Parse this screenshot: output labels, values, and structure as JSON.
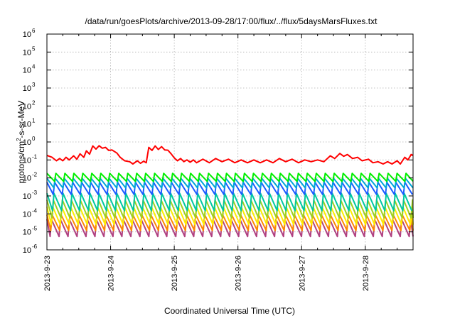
{
  "chart_data": {
    "type": "line",
    "title": "/data/run/goesPlots/archive/2013-09-28/17:00/flux/../flux/5daysMarsFluxes.txt",
    "xlabel": "Coordinated Universal Time (UTC)",
    "ylabel": "protons/cm²-s-sr-MeV",
    "ylabel_base": "protons/cm",
    "ylabel_sup": "2",
    "ylabel_rest": "-s-sr-MeV",
    "yscale": "log",
    "ylim": [
      1e-06,
      1000000.0
    ],
    "xlim_days": [
      0,
      5.75
    ],
    "grid": true,
    "yticks": [
      {
        "exp": "-6",
        "base": "10"
      },
      {
        "exp": "-5",
        "base": "10"
      },
      {
        "exp": "-4",
        "base": "10"
      },
      {
        "exp": "-3",
        "base": "10"
      },
      {
        "exp": "-2",
        "base": "10"
      },
      {
        "exp": "-1",
        "base": "10"
      },
      {
        "exp": "0",
        "base": "10"
      },
      {
        "exp": "1",
        "base": "10"
      },
      {
        "exp": "2",
        "base": "10"
      },
      {
        "exp": "3",
        "base": "10"
      },
      {
        "exp": "4",
        "base": "10"
      },
      {
        "exp": "5",
        "base": "10"
      },
      {
        "exp": "6",
        "base": "10"
      }
    ],
    "xticks": [
      "2013-9-23",
      "2013-9-24",
      "2013-9-25",
      "2013-9-26",
      "2013-9-27",
      "2013-9-28"
    ],
    "series": [
      {
        "color": "#ff0000",
        "points": [
          [
            0.0,
            0.18
          ],
          [
            0.08,
            0.14
          ],
          [
            0.15,
            0.09
          ],
          [
            0.2,
            0.12
          ],
          [
            0.25,
            0.09
          ],
          [
            0.3,
            0.14
          ],
          [
            0.35,
            0.1
          ],
          [
            0.42,
            0.17
          ],
          [
            0.47,
            0.11
          ],
          [
            0.52,
            0.22
          ],
          [
            0.58,
            0.14
          ],
          [
            0.62,
            0.32
          ],
          [
            0.67,
            0.21
          ],
          [
            0.72,
            0.6
          ],
          [
            0.77,
            0.4
          ],
          [
            0.82,
            0.62
          ],
          [
            0.87,
            0.45
          ],
          [
            0.92,
            0.5
          ],
          [
            0.97,
            0.34
          ],
          [
            1.02,
            0.36
          ],
          [
            1.1,
            0.24
          ],
          [
            1.15,
            0.14
          ],
          [
            1.22,
            0.09
          ],
          [
            1.3,
            0.08
          ],
          [
            1.35,
            0.06
          ],
          [
            1.42,
            0.09
          ],
          [
            1.47,
            0.065
          ],
          [
            1.52,
            0.085
          ],
          [
            1.56,
            0.07
          ],
          [
            1.6,
            0.5
          ],
          [
            1.65,
            0.34
          ],
          [
            1.7,
            0.6
          ],
          [
            1.75,
            0.38
          ],
          [
            1.8,
            0.55
          ],
          [
            1.85,
            0.36
          ],
          [
            1.9,
            0.35
          ],
          [
            1.95,
            0.22
          ],
          [
            2.0,
            0.13
          ],
          [
            2.05,
            0.09
          ],
          [
            2.1,
            0.12
          ],
          [
            2.15,
            0.08
          ],
          [
            2.2,
            0.1
          ],
          [
            2.25,
            0.075
          ],
          [
            2.3,
            0.1
          ],
          [
            2.35,
            0.07
          ],
          [
            2.45,
            0.11
          ],
          [
            2.55,
            0.07
          ],
          [
            2.65,
            0.12
          ],
          [
            2.75,
            0.08
          ],
          [
            2.85,
            0.11
          ],
          [
            2.95,
            0.07
          ],
          [
            3.05,
            0.1
          ],
          [
            3.15,
            0.07
          ],
          [
            3.25,
            0.1
          ],
          [
            3.35,
            0.07
          ],
          [
            3.45,
            0.1
          ],
          [
            3.55,
            0.07
          ],
          [
            3.65,
            0.12
          ],
          [
            3.75,
            0.08
          ],
          [
            3.85,
            0.11
          ],
          [
            3.95,
            0.07
          ],
          [
            4.05,
            0.1
          ],
          [
            4.15,
            0.08
          ],
          [
            4.25,
            0.1
          ],
          [
            4.35,
            0.08
          ],
          [
            4.45,
            0.17
          ],
          [
            4.52,
            0.12
          ],
          [
            4.6,
            0.23
          ],
          [
            4.66,
            0.16
          ],
          [
            4.72,
            0.2
          ],
          [
            4.8,
            0.12
          ],
          [
            4.88,
            0.14
          ],
          [
            4.95,
            0.09
          ],
          [
            5.05,
            0.11
          ],
          [
            5.12,
            0.07
          ],
          [
            5.2,
            0.08
          ],
          [
            5.28,
            0.06
          ],
          [
            5.35,
            0.08
          ],
          [
            5.42,
            0.06
          ],
          [
            5.5,
            0.09
          ],
          [
            5.55,
            0.06
          ],
          [
            5.62,
            0.14
          ],
          [
            5.67,
            0.1
          ],
          [
            5.72,
            0.2
          ],
          [
            5.75,
            0.18
          ]
        ]
      },
      {
        "color": "#00ee00",
        "sawtooth": {
          "peak": 0.018,
          "trough": 0.0065,
          "period": 0.141,
          "phase": 0.0
        }
      },
      {
        "color": "#00a8d8",
        "sawtooth": {
          "peak": 0.0095,
          "trough": 0.0028,
          "period": 0.141,
          "phase": 0.01
        }
      },
      {
        "color": "#1a5cff",
        "sawtooth": {
          "peak": 0.0058,
          "trough": 0.0012,
          "period": 0.141,
          "phase": 0.02
        }
      },
      {
        "color": "#00c8a0",
        "sawtooth": {
          "peak": 0.0014,
          "trough": 0.00015,
          "period": 0.141,
          "phase": 0.03
        }
      },
      {
        "color": "#a0d020",
        "sawtooth": {
          "peak": 0.0006,
          "trough": 6e-05,
          "period": 0.141,
          "phase": 0.04
        }
      },
      {
        "color": "#ffee00",
        "sawtooth": {
          "peak": 0.00025,
          "trough": 2.5e-05,
          "period": 0.141,
          "phase": 0.05
        }
      },
      {
        "color": "#ff8800",
        "sawtooth": {
          "peak": 9e-05,
          "trough": 1.2e-05,
          "period": 0.141,
          "phase": 0.06
        }
      },
      {
        "color": "#b04080",
        "sawtooth": {
          "peak": 5e-05,
          "trough": 5.5e-06,
          "period": 0.141,
          "phase": 0.07
        }
      }
    ]
  }
}
